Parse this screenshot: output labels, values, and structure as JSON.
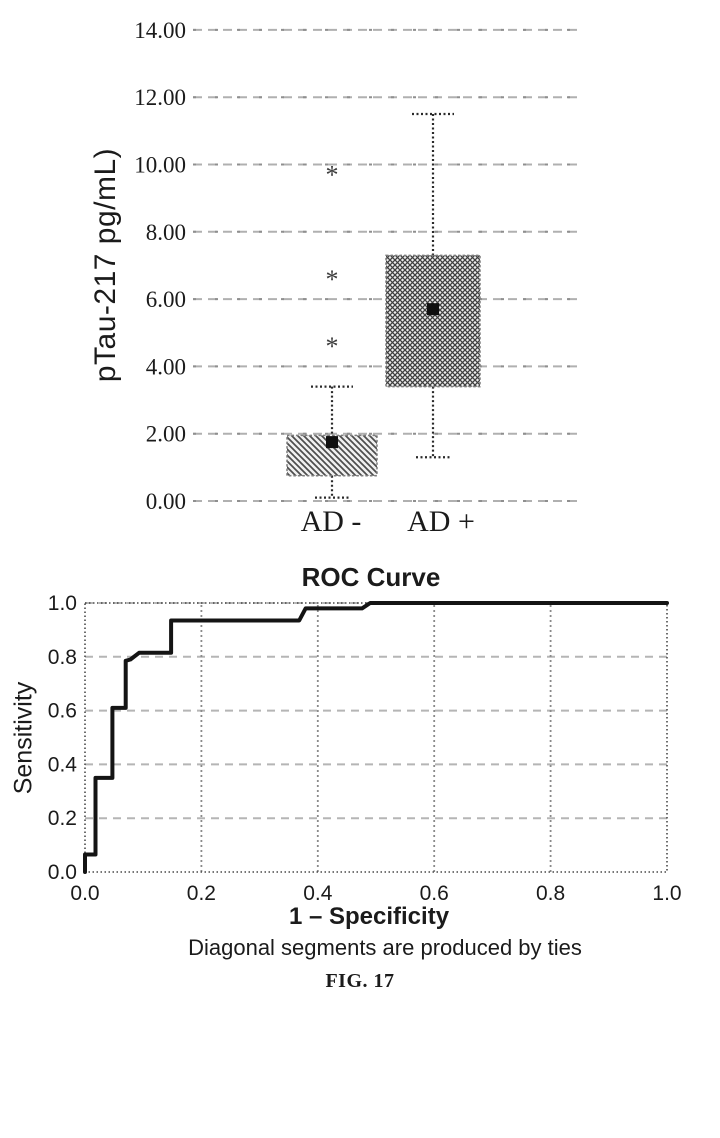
{
  "figure": {
    "label": "FIG. 17"
  },
  "chart_data": [
    {
      "type": "box",
      "title": "",
      "ylabel": "pTau-217 pg/mL)",
      "xlabel": "",
      "ylim": [
        0,
        14
      ],
      "ytick_values": [
        0,
        2,
        4,
        6,
        8,
        10,
        12,
        14
      ],
      "ytick_labels": [
        "0.00",
        "2.00",
        "4.00",
        "6.00",
        "8.00",
        "10.00",
        "12.00",
        "14.00"
      ],
      "grid": "horizontal dashed gray",
      "categories": [
        "AD -",
        "AD +"
      ],
      "series": [
        {
          "name": "AD -",
          "whisker_low": 0.1,
          "q1": 0.75,
          "median": 1.75,
          "q3": 1.95,
          "whisker_high": 3.4,
          "marker": 1.75,
          "outliers": [
            4.6,
            6.6,
            9.7
          ],
          "hatch": "diagonal"
        },
        {
          "name": "AD +",
          "whisker_low": 1.3,
          "q1": 3.4,
          "median": 5.7,
          "q3": 7.3,
          "whisker_high": 11.5,
          "marker": 5.7,
          "outliers": [],
          "hatch": "cross"
        }
      ]
    },
    {
      "type": "line",
      "subtype": "roc_step",
      "title": "ROC Curve",
      "xlabel": "1 – Specificity",
      "ylabel": "Sensitivity",
      "xlim": [
        0,
        1
      ],
      "ylim": [
        0,
        1
      ],
      "xtick_values": [
        0,
        0.2,
        0.4,
        0.6,
        0.8,
        1
      ],
      "xtick_labels": [
        "0.0",
        "0.2",
        "0.4",
        "0.6",
        "0.8",
        "1.0"
      ],
      "ytick_values": [
        0,
        0.2,
        0.4,
        0.6,
        0.8,
        1
      ],
      "ytick_labels": [
        "0.0",
        "0.2",
        "0.4",
        "0.6",
        "0.8",
        "1.0"
      ],
      "grid": "both dotted",
      "note": "Diagonal segments are produced by ties",
      "series": [
        {
          "name": "ROC",
          "points": [
            [
              0,
              0
            ],
            [
              0,
              0.065
            ],
            [
              0.018,
              0.065
            ],
            [
              0.018,
              0.35
            ],
            [
              0.047,
              0.35
            ],
            [
              0.047,
              0.61
            ],
            [
              0.07,
              0.61
            ],
            [
              0.07,
              0.785
            ],
            [
              0.078,
              0.79
            ],
            [
              0.093,
              0.815
            ],
            [
              0.148,
              0.815
            ],
            [
              0.148,
              0.935
            ],
            [
              0.368,
              0.935
            ],
            [
              0.379,
              0.98
            ],
            [
              0.476,
              0.98
            ],
            [
              0.49,
              1.0
            ],
            [
              1.0,
              1.0
            ]
          ]
        }
      ]
    }
  ]
}
